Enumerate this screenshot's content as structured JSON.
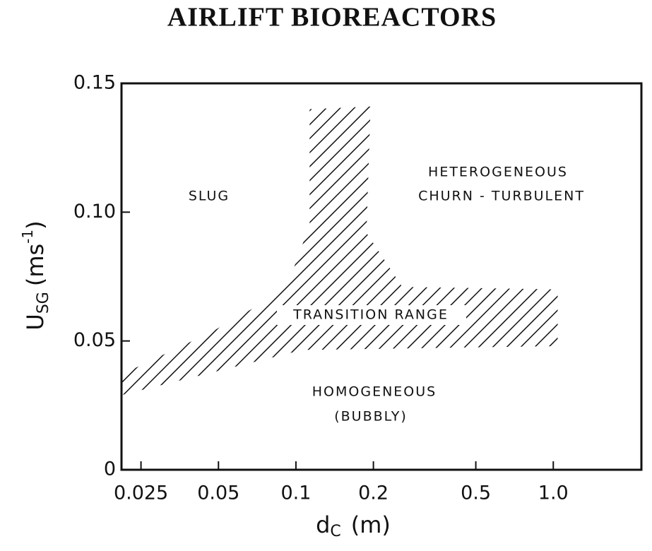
{
  "chart_data": {
    "type": "region",
    "title": "AIRLIFT BIOREACTORS",
    "x_label": [
      "d",
      "C",
      "(m)"
    ],
    "y_label": [
      "U",
      "SG",
      "(ms",
      "-1",
      ")"
    ],
    "x_scale": "log",
    "xlim": [
      0.021,
      2.2
    ],
    "xticks": [
      0.025,
      0.05,
      0.1,
      0.2,
      0.5,
      {
        "value": 1,
        "label": "1.0"
      }
    ],
    "ylim": [
      0,
      0.15
    ],
    "yticks": [
      0,
      0.05,
      {
        "value": 0.1,
        "label": "0.10"
      },
      0.15
    ],
    "color": "#111111",
    "region": {
      "x": [
        0.021,
        0.047,
        0.078,
        0.097,
        0.113,
        0.113,
        0.195,
        0.188,
        0.259,
        1.04,
        1.04,
        0.106,
        0.021
      ],
      "y": [
        0.037,
        0.0535,
        0.066,
        0.077,
        0.095,
        0.14,
        0.141,
        0.092,
        0.071,
        0.07,
        0.048,
        0.0465,
        0.029
      ]
    },
    "annotations": [
      "SLUG",
      "HETEROGENEOUS",
      "CHURN - TURBULENT",
      "TRANSITION RANGE",
      "HOMOGENEOUS",
      "(BUBBLY)"
    ]
  }
}
